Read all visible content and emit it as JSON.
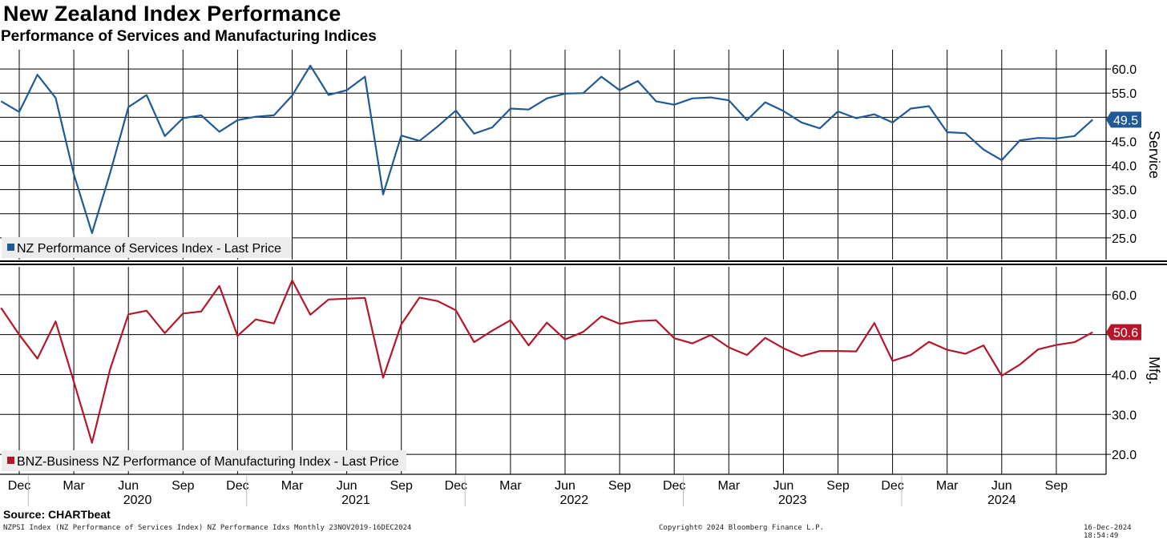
{
  "title": "New Zealand Index Performance",
  "subtitle": "Performance of Services and Manufacturing Indices",
  "source": "Source: CHARTbeat",
  "footer": {
    "left": "NZPSI Index (NZ Performance of Services Index) NZ Performance Idxs  Monthly 23NOV2019-16DEC2024",
    "center": "Copyright© 2024 Bloomberg Finance L.P.",
    "right": "16-Dec-2024 18:54:49"
  },
  "colors": {
    "services": "#1f5a96",
    "manufacturing": "#b5172a",
    "grid": "#000000"
  },
  "chart_data": [
    {
      "type": "line",
      "name": "services-panel",
      "axis_label": "Service",
      "legend": "NZ Performance of Services Index - Last Price",
      "last_value_label": "49.5",
      "ylim": [
        20.5,
        64
      ],
      "yticks": [
        25.0,
        30.0,
        35.0,
        40.0,
        45.0,
        50.0,
        55.0,
        60.0
      ],
      "ytick_labels": [
        "25.0",
        "30.0",
        "35.0",
        "40.0",
        "45.0",
        "50.0",
        "55.0",
        "60.0"
      ],
      "x_start": "2019-11",
      "values": [
        53.3,
        51.1,
        58.8,
        54.0,
        38.2,
        26.0,
        38.5,
        52.1,
        54.6,
        46.1,
        49.8,
        50.4,
        47.0,
        49.4,
        50.1,
        50.4,
        54.5,
        60.7,
        54.6,
        55.6,
        58.4,
        34.0,
        46.2,
        45.1,
        48.1,
        51.4,
        46.6,
        47.9,
        51.8,
        51.6,
        53.9,
        54.9,
        55.0,
        58.4,
        55.6,
        57.5,
        53.3,
        52.6,
        53.9,
        54.1,
        53.5,
        49.4,
        53.1,
        51.3,
        48.9,
        47.7,
        51.2,
        49.8,
        50.6,
        48.9,
        51.8,
        52.3,
        46.9,
        46.7,
        43.3,
        41.1,
        45.2,
        45.7,
        45.6,
        46.1,
        49.5
      ]
    },
    {
      "type": "line",
      "name": "manufacturing-panel",
      "axis_label": "Mfg.",
      "legend": "BNZ-Business NZ Performance of Manufacturing Index - Last Price",
      "last_value_label": "50.6",
      "ylim": [
        15.0,
        67.0
      ],
      "yticks": [
        20.0,
        30.0,
        40.0,
        50.0,
        60.0
      ],
      "ytick_labels": [
        "20.0",
        "30.0",
        "40.0",
        "50.0",
        "60.0"
      ],
      "x_start": "2019-11",
      "values": [
        56.7,
        50.0,
        44.0,
        53.3,
        38.2,
        22.9,
        41.4,
        55.1,
        56.0,
        50.4,
        55.3,
        55.8,
        62.2,
        49.7,
        53.8,
        52.8,
        63.6,
        55.0,
        58.8,
        59.0,
        59.2,
        39.2,
        52.6,
        59.3,
        58.4,
        56.1,
        48.1,
        51.0,
        53.6,
        47.3,
        53.0,
        48.8,
        50.7,
        54.6,
        52.7,
        53.4,
        53.6,
        49.1,
        47.8,
        49.9,
        46.8,
        44.9,
        49.2,
        46.6,
        44.6,
        45.9,
        45.9,
        45.8,
        52.9,
        43.4,
        44.9,
        48.2,
        46.2,
        45.2,
        47.3,
        39.7,
        42.5,
        46.3,
        47.4,
        48.1,
        50.6
      ]
    }
  ],
  "x_axis": {
    "month_labels": [
      "Dec",
      "Mar",
      "Jun",
      "Sep",
      "Dec",
      "Mar",
      "Jun",
      "Sep",
      "Dec",
      "Mar",
      "Jun",
      "Sep",
      "Dec",
      "Mar",
      "Jun",
      "Sep",
      "Dec",
      "Mar",
      "Jun",
      "Sep"
    ],
    "year_labels": [
      "2020",
      "2021",
      "2022",
      "2023",
      "2024"
    ]
  }
}
